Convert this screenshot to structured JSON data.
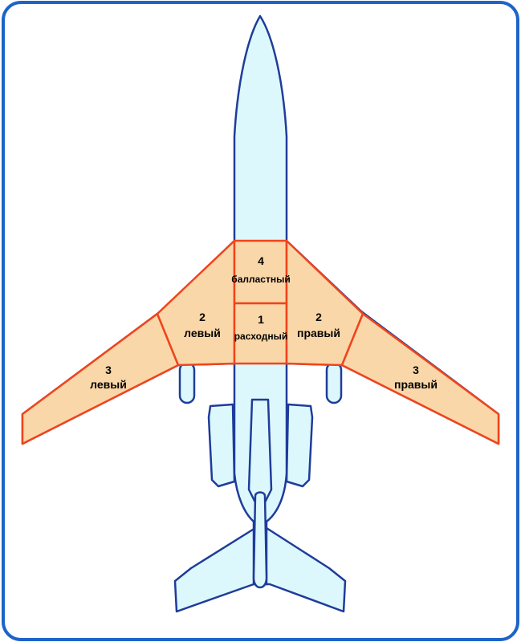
{
  "colors": {
    "frame": "#1E64C8",
    "fuselage_fill": "#DDF8FC",
    "fuselage_stroke": "#1F3C9A",
    "tank_fill": "#FAD7A8",
    "tank_stroke": "#F0441C"
  },
  "tanks": {
    "t4": {
      "number": "4",
      "name": "балластный"
    },
    "t1": {
      "number": "1",
      "name": "расходный"
    },
    "t2_left": {
      "number": "2",
      "name": "левый"
    },
    "t2_right": {
      "number": "2",
      "name": "правый"
    },
    "t3_left": {
      "number": "3",
      "name": "левый"
    },
    "t3_right": {
      "number": "3",
      "name": "правый"
    }
  }
}
